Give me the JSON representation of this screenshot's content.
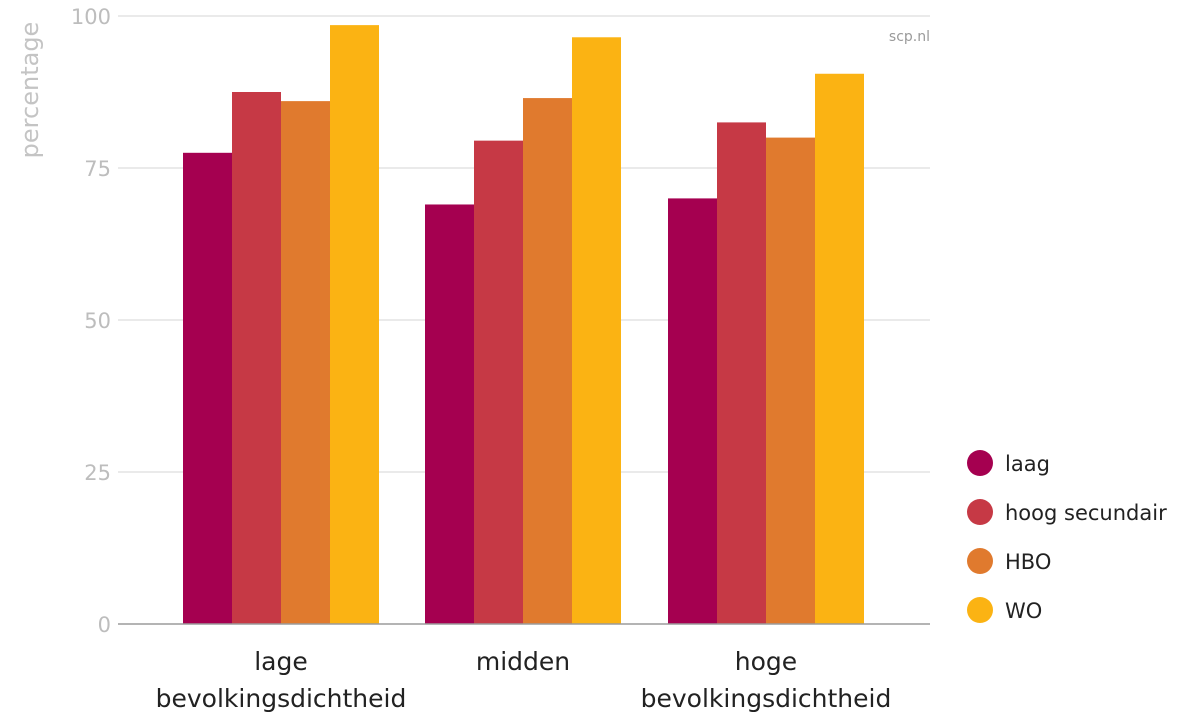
{
  "chart_data": {
    "type": "bar",
    "ylabel": "percentage",
    "source": "scp.nl",
    "ylim": [
      0,
      100
    ],
    "yticks": [
      0,
      25,
      50,
      75,
      100
    ],
    "categories": [
      [
        "lage",
        "bevolkingsdichtheid"
      ],
      [
        "midden"
      ],
      [
        "hoge",
        "bevolkingsdichtheid"
      ]
    ],
    "series": [
      {
        "name": "laag",
        "color": "#a50050",
        "values": [
          77.5,
          69,
          70
        ]
      },
      {
        "name": "hoog secundair",
        "color": "#c63945",
        "values": [
          87.5,
          79.5,
          82.5
        ]
      },
      {
        "name": "HBO",
        "color": "#e07a2e",
        "values": [
          86,
          86.5,
          80
        ]
      },
      {
        "name": "WO",
        "color": "#fbb313",
        "values": [
          98.5,
          96.5,
          90.5
        ]
      }
    ],
    "grid": true,
    "legend": "bottom-right"
  }
}
